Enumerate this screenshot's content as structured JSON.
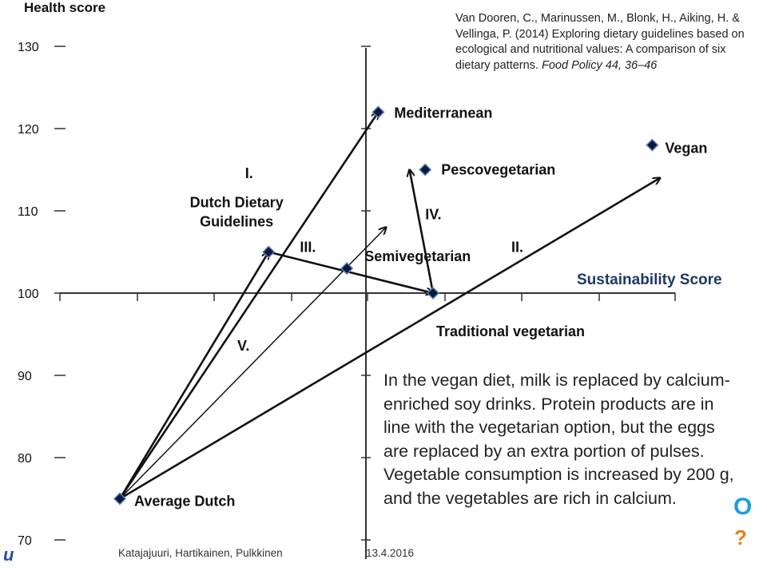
{
  "citation": {
    "authors": "Van Dooren, C., Marinussen, M., Blonk, H., Aiking, H. & Vellinga, P. (2014) Exploring dietary guidelines based on ecological and nutritional values: A comparison of six dietary patterns.",
    "journal": "Food Policy 44, 36–46"
  },
  "note": "In the vegan diet, milk is replaced by calcium-enriched soy drinks. Protein products are in line with the vegetarian option, but the eggs are replaced by an extra portion of pulses. Vegetable consumption is increased by 200 g, and the vegetables are rich in calcium.",
  "footer": {
    "authors": "Katajajuuri, Hartikainen, Pulkkinen",
    "date": "13.4.2016"
  },
  "logos": {
    "left": "u",
    "right_top": "O",
    "right_bottom": "?"
  },
  "colors": {
    "accent": "#1f3864",
    "logo_blue": "#1a9fdc",
    "logo_orange": "#e8801c"
  },
  "chart_data": {
    "type": "scatter",
    "title": "",
    "ylabel": "Health score",
    "xlabel": "Sustainability Score",
    "ylim": [
      70,
      130
    ],
    "yticks": [
      70,
      80,
      90,
      100,
      110,
      120,
      130
    ],
    "points": [
      {
        "name": "Average Dutch",
        "x": 60,
        "y": 75
      },
      {
        "name": "Dutch Dietary Guidelines",
        "x": 79,
        "y": 105
      },
      {
        "name": "Semivegetarian",
        "x": 89,
        "y": 103
      },
      {
        "name": "Traditional vegetarian",
        "x": 100,
        "y": 100
      },
      {
        "name": "Mediterranean",
        "x": 93,
        "y": 122
      },
      {
        "name": "Pescovegetarian",
        "x": 99,
        "y": 115
      },
      {
        "name": "Vegan",
        "x": 128,
        "y": 118
      }
    ],
    "arrows": [
      {
        "label": "I.",
        "from": [
          60,
          75
        ],
        "to": [
          93,
          122
        ]
      },
      {
        "label": "II.",
        "from": [
          60,
          75
        ],
        "to": [
          129,
          114
        ]
      },
      {
        "label": "III.",
        "from": [
          79,
          105
        ],
        "to": [
          100,
          100
        ]
      },
      {
        "label": "IV.",
        "from": [
          100,
          100
        ],
        "to": [
          97,
          115
        ]
      },
      {
        "label": "V.",
        "from": [
          60,
          75
        ],
        "to": [
          94,
          108
        ]
      },
      {
        "label": "",
        "from": [
          60,
          75
        ],
        "to": [
          79,
          105
        ]
      }
    ],
    "arrow_labels": [
      {
        "text": "I.",
        "x": 76,
        "y": 114
      },
      {
        "text": "II.",
        "x": 110,
        "y": 105
      },
      {
        "text": "III.",
        "x": 83,
        "y": 105
      },
      {
        "text": "IV.",
        "x": 99,
        "y": 109
      },
      {
        "text": "V.",
        "x": 75,
        "y": 93
      }
    ],
    "x_axis_at_y": 100,
    "y_axis_at_x": 92,
    "grid": false
  }
}
